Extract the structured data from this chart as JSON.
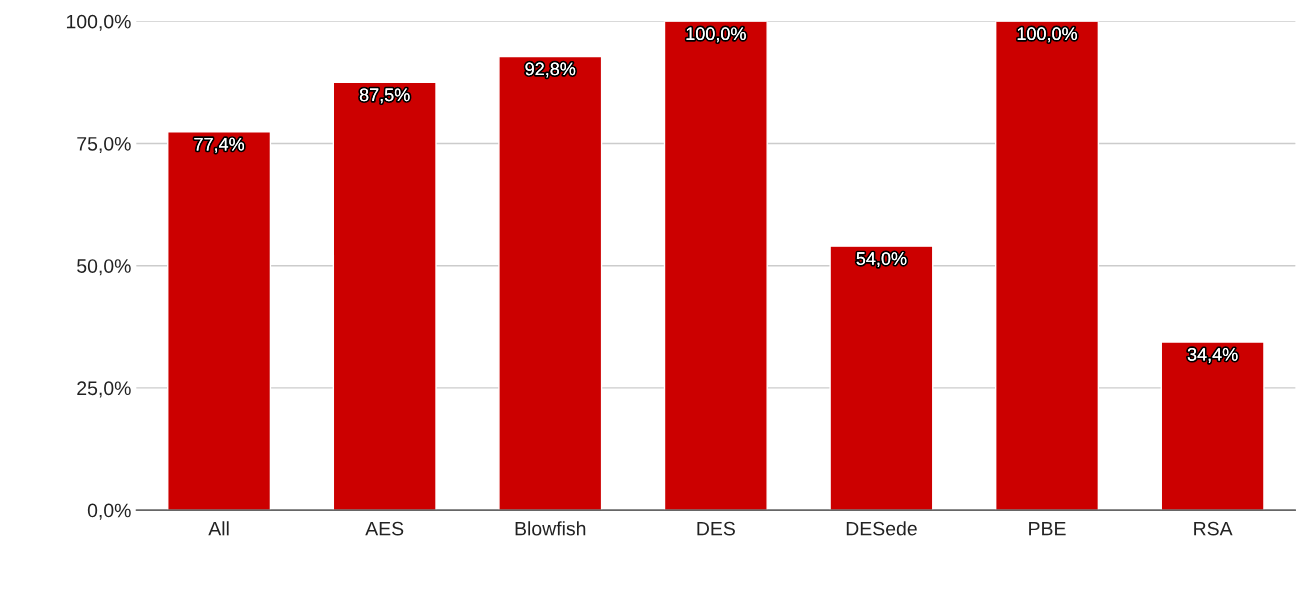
{
  "chart_data": {
    "type": "bar",
    "categories": [
      "All",
      "AES",
      "Blowfish",
      "DES",
      "DESede",
      "PBE",
      "RSA"
    ],
    "values": [
      77.4,
      87.5,
      92.8,
      100.0,
      54.0,
      100.0,
      34.4
    ],
    "value_labels": [
      "77,4%",
      "87,5%",
      "92,8%",
      "100,0%",
      "54,0%",
      "100,0%",
      "34,4%"
    ],
    "color": "#cc0000",
    "ylim": [
      0,
      100
    ],
    "yticks": [
      {
        "value": 0,
        "label": "0,0%"
      },
      {
        "value": 25,
        "label": "25,0%"
      },
      {
        "value": 50,
        "label": "50,0%"
      },
      {
        "value": 75,
        "label": "75,0%"
      },
      {
        "value": 100,
        "label": "100,0%"
      }
    ],
    "grid": "y"
  }
}
